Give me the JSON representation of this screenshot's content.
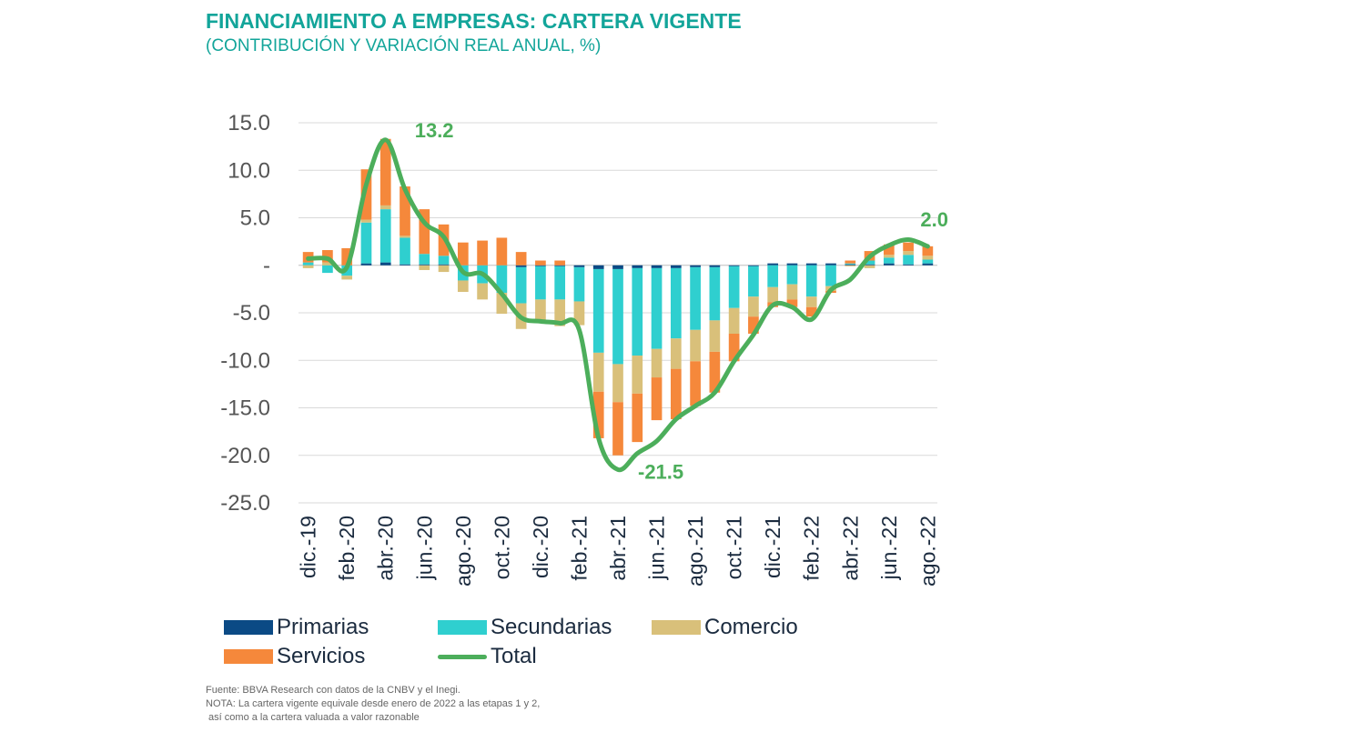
{
  "header": {
    "title": "FINANCIAMIENTO A EMPRESAS: CARTERA VIGENTE",
    "subtitle": "(CONTRIBUCIÓN Y VARIACIÓN REAL ANUAL, %)"
  },
  "chart_data": {
    "type": "bar",
    "stacked": true,
    "line_series": "Total",
    "x": [
      "dic.-19",
      "ene.-20",
      "feb.-20",
      "mar.-20",
      "abr.-20",
      "may.-20",
      "jun.-20",
      "jul.-20",
      "ago.-20",
      "sep.-20",
      "oct.-20",
      "nov.-20",
      "dic.-20",
      "ene.-21",
      "feb.-21",
      "mar.-21",
      "abr.-21",
      "may.-21",
      "jun.-21",
      "jul.-21",
      "ago.-21",
      "sep.-21",
      "oct.-21",
      "nov.-21",
      "dic.-21",
      "ene.-22",
      "feb.-22",
      "mar.-22",
      "abr.-22",
      "may.-22",
      "jun.-22",
      "jul.-22",
      "ago.-22"
    ],
    "tick_labels": [
      "dic.-19",
      "",
      "feb.-20",
      "",
      "abr.-20",
      "",
      "jun.-20",
      "",
      "ago.-20",
      "",
      "oct.-20",
      "",
      "dic.-20",
      "",
      "feb.-21",
      "",
      "abr.-21",
      "",
      "jun.-21",
      "",
      "ago.-21",
      "",
      "oct.-21",
      "",
      "dic.-21",
      "",
      "feb.-22",
      "",
      "abr.-22",
      "",
      "jun.-22",
      "",
      "ago.-22"
    ],
    "series": [
      {
        "name": "Primarias",
        "color": "#0b4a85",
        "values": [
          0.0,
          0.0,
          0.0,
          0.2,
          0.3,
          0.1,
          0.1,
          0.1,
          0.0,
          0.0,
          0.0,
          -0.2,
          -0.1,
          -0.1,
          -0.2,
          -0.4,
          -0.4,
          -0.3,
          -0.3,
          -0.3,
          -0.2,
          -0.2,
          -0.1,
          -0.1,
          0.2,
          0.2,
          0.2,
          0.2,
          0.1,
          0.1,
          0.2,
          0.1,
          0.2
        ]
      },
      {
        "name": "Secundarias",
        "color": "#2fcfcf",
        "values": [
          0.3,
          -0.8,
          -1.1,
          4.3,
          5.6,
          2.8,
          1.1,
          0.9,
          -1.6,
          -1.9,
          -2.9,
          -3.8,
          -3.5,
          -3.5,
          -3.6,
          -8.8,
          -10.0,
          -9.2,
          -8.5,
          -7.4,
          -6.6,
          -5.6,
          -4.4,
          -3.2,
          -2.3,
          -2.0,
          -3.3,
          -2.2,
          0.1,
          0.4,
          0.6,
          1.0,
          0.4
        ]
      },
      {
        "name": "Comercio",
        "color": "#d9c07a",
        "values": [
          -0.3,
          0.3,
          -0.4,
          0.3,
          0.4,
          0.2,
          -0.5,
          -0.7,
          -1.2,
          -1.7,
          -2.2,
          -2.7,
          -2.2,
          -2.8,
          -2.5,
          -4.1,
          -4.0,
          -4.0,
          -3.0,
          -3.2,
          -3.3,
          -3.3,
          -2.7,
          -2.1,
          -1.6,
          -1.6,
          -1.1,
          -0.5,
          -0.1,
          -0.3,
          0.3,
          0.4,
          0.4
        ]
      },
      {
        "name": "Servicios",
        "color": "#f5883b",
        "values": [
          1.1,
          1.3,
          1.8,
          5.3,
          7.0,
          5.2,
          4.7,
          3.3,
          2.4,
          2.6,
          2.9,
          1.4,
          0.5,
          0.5,
          0.0,
          -4.9,
          -5.6,
          -5.1,
          -4.5,
          -5.3,
          -4.7,
          -4.3,
          -2.9,
          -1.8,
          -0.5,
          -0.8,
          -1.0,
          -0.2,
          0.3,
          1.0,
          1.1,
          0.9,
          1.0
        ]
      }
    ],
    "total": {
      "name": "Total",
      "color": "#4cae5b",
      "values": [
        0.7,
        0.7,
        -0.2,
        8.5,
        13.2,
        8.0,
        4.5,
        3.0,
        -0.7,
        -0.9,
        -3.0,
        -5.5,
        -5.9,
        -6.1,
        -6.8,
        -18.2,
        -21.5,
        -19.8,
        -18.5,
        -16.2,
        -14.8,
        -13.4,
        -10.1,
        -7.3,
        -4.2,
        -4.4,
        -5.7,
        -2.6,
        -1.5,
        0.9,
        2.1,
        2.7,
        2.0
      ]
    },
    "annotations": [
      {
        "x": "abr.-20",
        "value": 13.2,
        "label": "13.2"
      },
      {
        "x": "abr.-21",
        "value": -21.5,
        "label": "-21.5"
      },
      {
        "x": "ago.-22",
        "value": 2.0,
        "label": "2.0"
      }
    ],
    "yticks": [
      15,
      10,
      5,
      0,
      -5,
      -10,
      -15,
      -20,
      -25
    ],
    "ytick_labels": [
      "15.0",
      "10.0",
      "5.0",
      "-",
      "-5.0",
      "-10.0",
      "-15.0",
      "-20.0",
      "-25.0"
    ],
    "ylim": [
      -25,
      15
    ],
    "grid": true,
    "legend_position": "bottom"
  },
  "legend": {
    "items": [
      {
        "label": "Primarias",
        "color": "#0b4a85"
      },
      {
        "label": "Secundarias",
        "color": "#2fcfcf"
      },
      {
        "label": "Comercio",
        "color": "#d9c07a"
      },
      {
        "label": "Servicios",
        "color": "#f5883b"
      },
      {
        "label": "Total",
        "color": "#4cae5b"
      }
    ]
  },
  "notes": {
    "source": "Fuente: BBVA Research con datos de la CNBV y el Inegi.",
    "note_line1": "NOTA: La cartera vigente equivale desde enero de 2022 a las etapas 1 y 2,",
    "note_line2": " así como a la cartera valuada a valor razonable"
  }
}
